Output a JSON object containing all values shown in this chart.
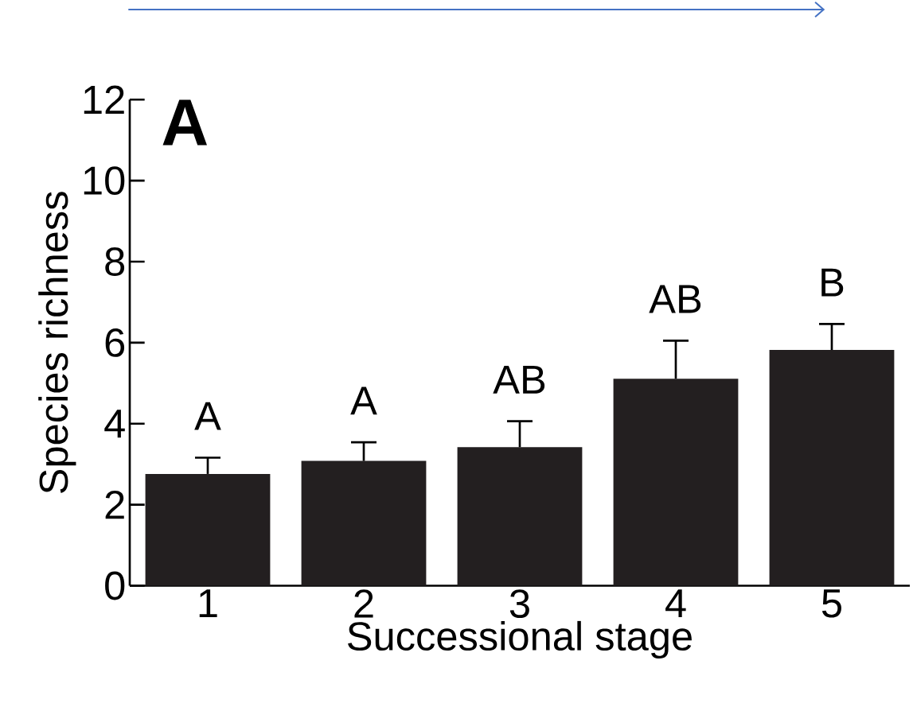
{
  "chart_data": {
    "type": "bar",
    "xlabel": "Successional stage",
    "ylabel": "Species richness",
    "categories": [
      "1",
      "2",
      "3",
      "4",
      "5"
    ],
    "values": [
      2.76,
      3.08,
      3.42,
      5.11,
      5.82
    ],
    "errors": [
      0.4,
      0.46,
      0.64,
      0.94,
      0.64
    ],
    "color": "#231f20",
    "ylim": [
      0,
      12
    ],
    "yticks": [
      0,
      2,
      4,
      6,
      8,
      10,
      12
    ],
    "annotations": [
      "**A**",
      "A",
      "A",
      "AB",
      "AB",
      "B"
    ]
  }
}
